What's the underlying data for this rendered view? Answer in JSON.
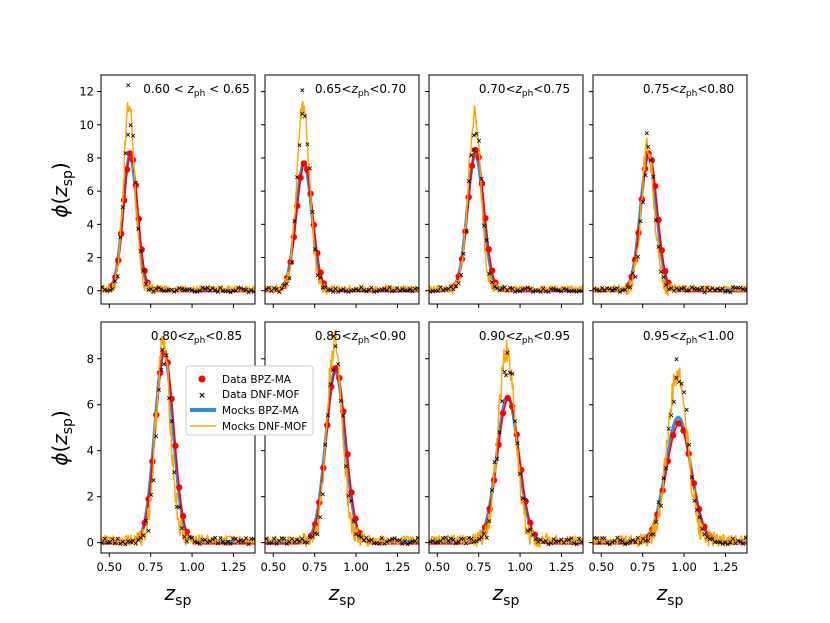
{
  "figure": {
    "ylabel": "ϕ(z_sp)",
    "xlabel": "z_sp",
    "legend": [
      "Data BPZ-MA",
      "Data DNF-MOF",
      "Mocks BPZ-MA",
      "Mocks DNF-MOF"
    ]
  },
  "colors": {
    "data_bpz": "#ff0000",
    "data_dnf": "#1a8a1a",
    "mock_bpz": "#2f8fe0",
    "mock_dnf": "#ffa500"
  },
  "chart_data": [
    {
      "type": "line",
      "title": "0.60 < z_ph < 0.65",
      "title_parts": [
        "0.60 < ",
        "z",
        "ph",
        " < 0.65"
      ],
      "row": 0,
      "peak": 0.625,
      "width": 0.042,
      "series": [
        {
          "name": "Data BPZ-MA",
          "peak_value": 8.3
        },
        {
          "name": "Data DNF-MOF",
          "peak_value": 12.4
        },
        {
          "name": "Mocks BPZ-MA",
          "peak_value": 8.1
        },
        {
          "name": "Mocks DNF-MOF",
          "peak_value": 11.1
        }
      ],
      "xlim": [
        0.45,
        1.38
      ],
      "ylim": [
        -0.8,
        13
      ],
      "xticks": [
        "0.50",
        "0.75",
        "1.00",
        "1.25"
      ],
      "yticks": [
        "0",
        "2",
        "4",
        "6",
        "8",
        "10",
        "12"
      ]
    },
    {
      "type": "line",
      "title": "0.65<z_ph<0.70",
      "title_parts": [
        "0.65<",
        "z",
        "ph",
        "<0.70"
      ],
      "row": 0,
      "peak": 0.685,
      "width": 0.048,
      "series": [
        {
          "name": "Data BPZ-MA",
          "peak_value": 7.7
        },
        {
          "name": "Data DNF-MOF",
          "peak_value": 12.1
        },
        {
          "name": "Mocks BPZ-MA",
          "peak_value": 7.6
        },
        {
          "name": "Mocks DNF-MOF",
          "peak_value": 11.2
        }
      ],
      "xlim": [
        0.45,
        1.38
      ],
      "ylim": [
        -0.8,
        13
      ],
      "xticks": [
        "0.50",
        "0.75",
        "1.00",
        "1.25"
      ],
      "yticks": [
        "0",
        "2",
        "4",
        "6",
        "8",
        "10",
        "12"
      ]
    },
    {
      "type": "line",
      "title": "0.70<z_ph<0.75",
      "title_parts": [
        "0.70<",
        "z",
        "ph",
        "<0.75"
      ],
      "row": 0,
      "peak": 0.73,
      "width": 0.048,
      "series": [
        {
          "name": "Data BPZ-MA",
          "peak_value": 8.5
        },
        {
          "name": "Data DNF-MOF",
          "peak_value": 8.5
        },
        {
          "name": "Mocks BPZ-MA",
          "peak_value": 8.2
        },
        {
          "name": "Mocks DNF-MOF",
          "peak_value": 10.4
        }
      ],
      "xlim": [
        0.45,
        1.38
      ],
      "ylim": [
        -0.8,
        13
      ],
      "xticks": [
        "0.50",
        "0.75",
        "1.00",
        "1.25"
      ],
      "yticks": [
        "0",
        "2",
        "4",
        "6",
        "8",
        "10",
        "12"
      ]
    },
    {
      "type": "line",
      "title": "0.75<z_ph<0.80",
      "title_parts": [
        "0.75<",
        "z",
        "ph",
        "<0.80"
      ],
      "row": 0,
      "peak": 0.785,
      "width": 0.048,
      "series": [
        {
          "name": "Data BPZ-MA",
          "peak_value": 8.3
        },
        {
          "name": "Data DNF-MOF",
          "peak_value": 9.5
        },
        {
          "name": "Mocks BPZ-MA",
          "peak_value": 8.1
        },
        {
          "name": "Mocks DNF-MOF",
          "peak_value": 8.6
        }
      ],
      "xlim": [
        0.45,
        1.38
      ],
      "ylim": [
        -0.8,
        13
      ],
      "xticks": [
        "0.50",
        "0.75",
        "1.00",
        "1.25"
      ],
      "yticks": [
        "0",
        "2",
        "4",
        "6",
        "8",
        "10",
        "12"
      ]
    },
    {
      "type": "line",
      "title": "0.80<z_ph<0.85",
      "title_parts": [
        "0.80<",
        "z",
        "ph",
        "<0.85"
      ],
      "row": 1,
      "peak": 0.83,
      "width": 0.055,
      "series": [
        {
          "name": "Data BPZ-MA",
          "peak_value": 8.3
        },
        {
          "name": "Data DNF-MOF",
          "peak_value": 8.4
        },
        {
          "name": "Mocks BPZ-MA",
          "peak_value": 8.2
        },
        {
          "name": "Mocks DNF-MOF",
          "peak_value": 8.5
        }
      ],
      "xlim": [
        0.45,
        1.38
      ],
      "ylim": [
        -0.45,
        9.6
      ],
      "xticks": [
        "0.50",
        "0.75",
        "1.00",
        "1.25"
      ],
      "yticks": [
        "0",
        "2",
        "4",
        "6",
        "8"
      ]
    },
    {
      "type": "line",
      "title": "0.85<z_ph<0.90",
      "title_parts": [
        "0.85<",
        "z",
        "ph",
        "<0.90"
      ],
      "row": 1,
      "peak": 0.875,
      "width": 0.058,
      "series": [
        {
          "name": "Data BPZ-MA",
          "peak_value": 7.6
        },
        {
          "name": "Data DNF-MOF",
          "peak_value": 9.0
        },
        {
          "name": "Mocks BPZ-MA",
          "peak_value": 7.4
        },
        {
          "name": "Mocks DNF-MOF",
          "peak_value": 8.6
        }
      ],
      "xlim": [
        0.45,
        1.38
      ],
      "ylim": [
        -0.45,
        9.6
      ],
      "xticks": [
        "0.50",
        "0.75",
        "1.00",
        "1.25"
      ],
      "yticks": [
        "0",
        "2",
        "4",
        "6",
        "8"
      ]
    },
    {
      "type": "line",
      "title": "0.90<z_ph<0.95",
      "title_parts": [
        "0.90<",
        "z",
        "ph",
        "<0.95"
      ],
      "row": 1,
      "peak": 0.925,
      "width": 0.065,
      "series": [
        {
          "name": "Data BPZ-MA",
          "peak_value": 6.3
        },
        {
          "name": "Data DNF-MOF",
          "peak_value": 7.3
        },
        {
          "name": "Mocks BPZ-MA",
          "peak_value": 6.3
        },
        {
          "name": "Mocks DNF-MOF",
          "peak_value": 8.2
        }
      ],
      "xlim": [
        0.45,
        1.38
      ],
      "ylim": [
        -0.45,
        9.6
      ],
      "xticks": [
        "0.50",
        "0.75",
        "1.00",
        "1.25"
      ],
      "yticks": [
        "0",
        "2",
        "4",
        "6",
        "8"
      ]
    },
    {
      "type": "line",
      "title": "0.95<z_ph<1.00",
      "title_parts": [
        "0.95<",
        "z",
        "ph",
        "<1.00"
      ],
      "row": 1,
      "peak": 0.965,
      "width": 0.075,
      "series": [
        {
          "name": "Data BPZ-MA",
          "peak_value": 5.2
        },
        {
          "name": "Data DNF-MOF",
          "peak_value": 8.0
        },
        {
          "name": "Mocks BPZ-MA",
          "peak_value": 5.4
        },
        {
          "name": "Mocks DNF-MOF",
          "peak_value": 7.2
        }
      ],
      "xlim": [
        0.45,
        1.38
      ],
      "ylim": [
        -0.45,
        9.6
      ],
      "xticks": [
        "0.50",
        "0.75",
        "1.00",
        "1.25"
      ],
      "yticks": [
        "0",
        "2",
        "4",
        "6",
        "8"
      ]
    }
  ]
}
